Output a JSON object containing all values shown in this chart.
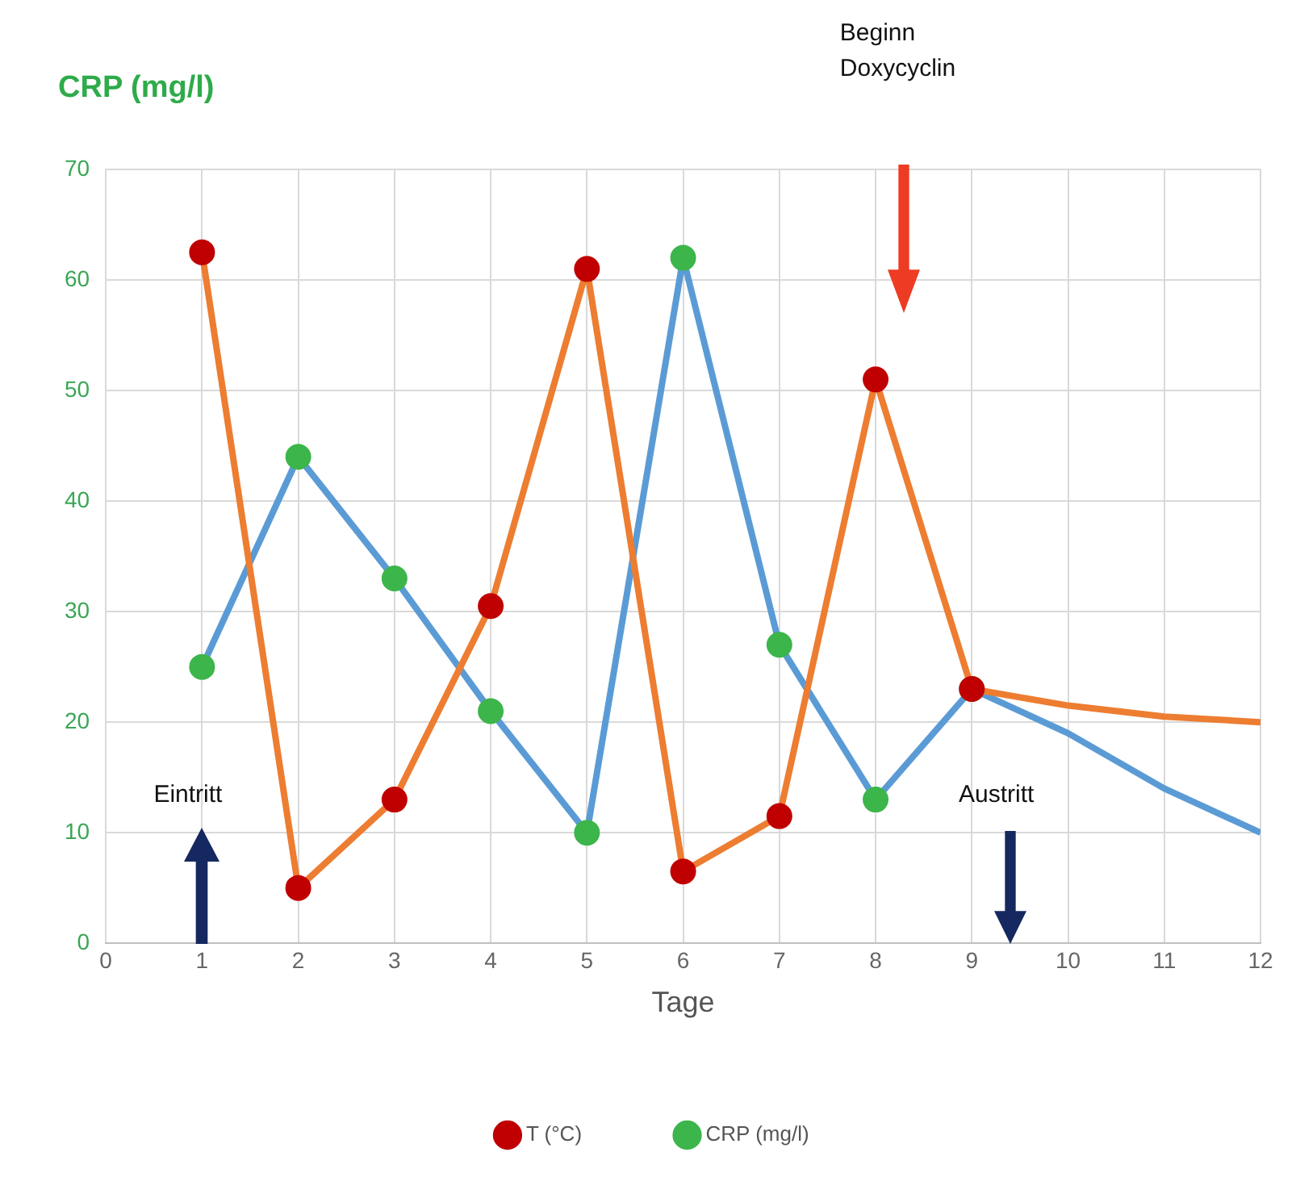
{
  "chart_data": {
    "type": "line",
    "ylabel": "CRP (mg/l)",
    "xlabel": "Tage",
    "x": [
      1,
      2,
      3,
      4,
      5,
      6,
      7,
      8,
      9,
      10,
      11,
      12
    ],
    "series": [
      {
        "name": "CRP (mg/l)",
        "color": "#5b9bd5",
        "colors": [
          "#3cb54a",
          "#3cb54a",
          "#3cb54a",
          "#3cb54a",
          "#3cb54a",
          "#3cb54a",
          "#3cb54a",
          "#3cb54a",
          "#3cb54a",
          null,
          null,
          null
        ],
        "values": [
          25,
          44,
          33,
          21,
          10,
          62,
          27,
          13,
          23,
          19,
          14,
          10
        ]
      },
      {
        "name": "T (°C)",
        "color": "#ed7d31",
        "colors": [
          "#c00000",
          "#c00000",
          "#c00000",
          "#c00000",
          "#c00000",
          "#c00000",
          "#c00000",
          "#c00000",
          "#c00000",
          null,
          null,
          null
        ],
        "values": [
          62.5,
          5,
          13,
          30.5,
          61,
          6.5,
          11.5,
          51,
          23,
          21.5,
          20.5,
          20
        ]
      }
    ],
    "xlim": [
      0,
      12
    ],
    "xticks": [
      0,
      1,
      2,
      3,
      4,
      5,
      6,
      7,
      8,
      9,
      10,
      11,
      12
    ],
    "ylim": [
      0,
      70
    ],
    "yticks": [
      0,
      10,
      20,
      30,
      40,
      50,
      60,
      70
    ],
    "grid": true,
    "legend": "bottom",
    "marker": "circle",
    "line_style": "solid",
    "annotations": [
      "Eintritt",
      "Beginn Doxycyclin",
      "Austritt"
    ]
  }
}
